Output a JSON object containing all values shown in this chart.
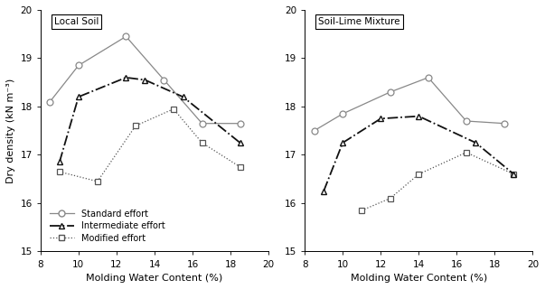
{
  "left_title": "Local Soil",
  "right_title": "Soil-Lime Mixture",
  "xlabel": "Molding Water Content (%)",
  "ylabel": "Dry density (kN m⁻³)",
  "xlim": [
    8,
    20
  ],
  "ylim": [
    15,
    20
  ],
  "yticks": [
    15,
    16,
    17,
    18,
    19,
    20
  ],
  "xticks": [
    8,
    10,
    12,
    14,
    16,
    18,
    20
  ],
  "left_standard_x": [
    8.5,
    10,
    12.5,
    14.5,
    16.5,
    18.5
  ],
  "left_standard_y": [
    18.1,
    18.85,
    19.45,
    18.55,
    17.65,
    17.65
  ],
  "left_intermediate_x": [
    9,
    10,
    12.5,
    13.5,
    15.5,
    18.5
  ],
  "left_intermediate_y": [
    16.85,
    18.2,
    18.6,
    18.55,
    18.2,
    17.25
  ],
  "left_modified_x": [
    9,
    11,
    13,
    15,
    16.5,
    18.5
  ],
  "left_modified_y": [
    16.65,
    16.45,
    17.6,
    17.95,
    17.25,
    16.75
  ],
  "right_standard_x": [
    8.5,
    10,
    12.5,
    14.5,
    16.5,
    18.5
  ],
  "right_standard_y": [
    17.5,
    17.85,
    18.3,
    18.6,
    17.7,
    17.65
  ],
  "right_intermediate_x": [
    9,
    10,
    12,
    14,
    17,
    19
  ],
  "right_intermediate_y": [
    16.25,
    17.25,
    17.75,
    17.8,
    17.25,
    16.6
  ],
  "right_modified_x": [
    11,
    12.5,
    14,
    16.5,
    19
  ],
  "right_modified_y": [
    15.85,
    16.1,
    16.6,
    17.05,
    16.6
  ],
  "legend_labels": [
    "Standard effort",
    "Intermediate effort",
    "Modified effort"
  ],
  "col_standard": "#888888",
  "col_intermediate": "#111111",
  "col_modified": "#555555",
  "background": "#ffffff"
}
